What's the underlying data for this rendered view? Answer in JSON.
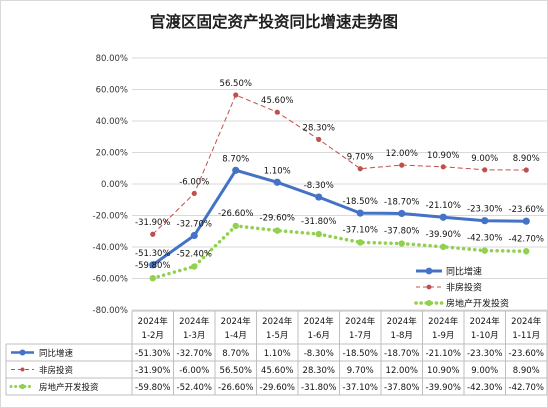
{
  "chart_data": {
    "type": "line",
    "title": "官渡区固定资产投资同比增速走势图",
    "categories": [
      "2024年 1-2月",
      "2024年 1-3月",
      "2024年 1-4月",
      "2024年 1-5月",
      "2024年 1-6月",
      "2024年 1-7月",
      "2024年 1-8月",
      "2024年 1-9月",
      "2024年 1-10月",
      "2024年 1-11月"
    ],
    "category_lines": [
      [
        "2024年",
        "1-2月"
      ],
      [
        "2024年",
        "1-3月"
      ],
      [
        "2024年",
        "1-4月"
      ],
      [
        "2024年",
        "1-5月"
      ],
      [
        "2024年",
        "1-6月"
      ],
      [
        "2024年",
        "1-7月"
      ],
      [
        "2024年",
        "1-8月"
      ],
      [
        "2024年",
        "1-9月"
      ],
      [
        "2024年",
        "1-10月"
      ],
      [
        "2024年",
        "1-11月"
      ]
    ],
    "ylim": [
      -80,
      80
    ],
    "ytick_step": 20,
    "ytick_labels": [
      "80.00%",
      "60.00%",
      "40.00%",
      "20.00%",
      "0.00%",
      "-20.00%",
      "-40.00%",
      "-60.00%",
      "-80.00%"
    ],
    "grid": true,
    "legend_position": "right",
    "data_table": true,
    "series": [
      {
        "name": "同比增速",
        "values": [
          -51.3,
          -32.7,
          8.7,
          1.1,
          -8.3,
          -18.5,
          -18.7,
          -21.1,
          -23.3,
          -23.6
        ],
        "labels": [
          "-51.30%",
          "-32.70%",
          "8.70%",
          "1.10%",
          "-8.30%",
          "-18.50%",
          "-18.70%",
          "-21.10%",
          "-23.30%",
          "-23.60%"
        ],
        "table_labels": [
          "-51.30%",
          "-32.70%",
          "8.70%",
          "1.10%",
          "-8.30%",
          "-18.50%",
          "-18.70%",
          "-21.10%",
          "-23.30%",
          "-23.60%"
        ],
        "color": "#4472c4",
        "style": "solid"
      },
      {
        "name": "非房投资",
        "values": [
          -31.9,
          -6.0,
          56.5,
          45.6,
          28.3,
          9.7,
          12.0,
          10.9,
          9.0,
          8.9
        ],
        "labels": [
          "-31.90%",
          "-6.00%",
          "56.50%",
          "45.60%",
          "28.30%",
          "9.70%",
          "12.00%",
          "10.90%",
          "9.00%",
          "8.90%"
        ],
        "table_labels": [
          "-31.90%",
          "-6.00%",
          "56.50%",
          "45.60%",
          "28.30%",
          "9.70%",
          "12.00%",
          "10.90%",
          "9.00%",
          "8.90%"
        ],
        "color": "#c0504d",
        "style": "dashed"
      },
      {
        "name": "房地产开发投资",
        "values": [
          -59.8,
          -52.4,
          -26.6,
          -29.6,
          -31.8,
          -37.1,
          -37.8,
          -39.9,
          -42.3,
          -42.7
        ],
        "labels": [
          "-59.80%",
          "-52.40%",
          "-26.60%",
          "-29.60%",
          "-31.80%",
          "-37.10%",
          "-37.80%",
          "-39.90%",
          "-42.30%",
          "-42.70%"
        ],
        "table_labels": [
          "-59.80%",
          "-52.40%",
          "-26.60%",
          "-29.60%",
          "-31.80%",
          "-37.10%",
          "-37.80%",
          "-39.90%",
          "-42.30%",
          "-42.70%"
        ],
        "color": "#92d050",
        "style": "dotted"
      }
    ]
  }
}
